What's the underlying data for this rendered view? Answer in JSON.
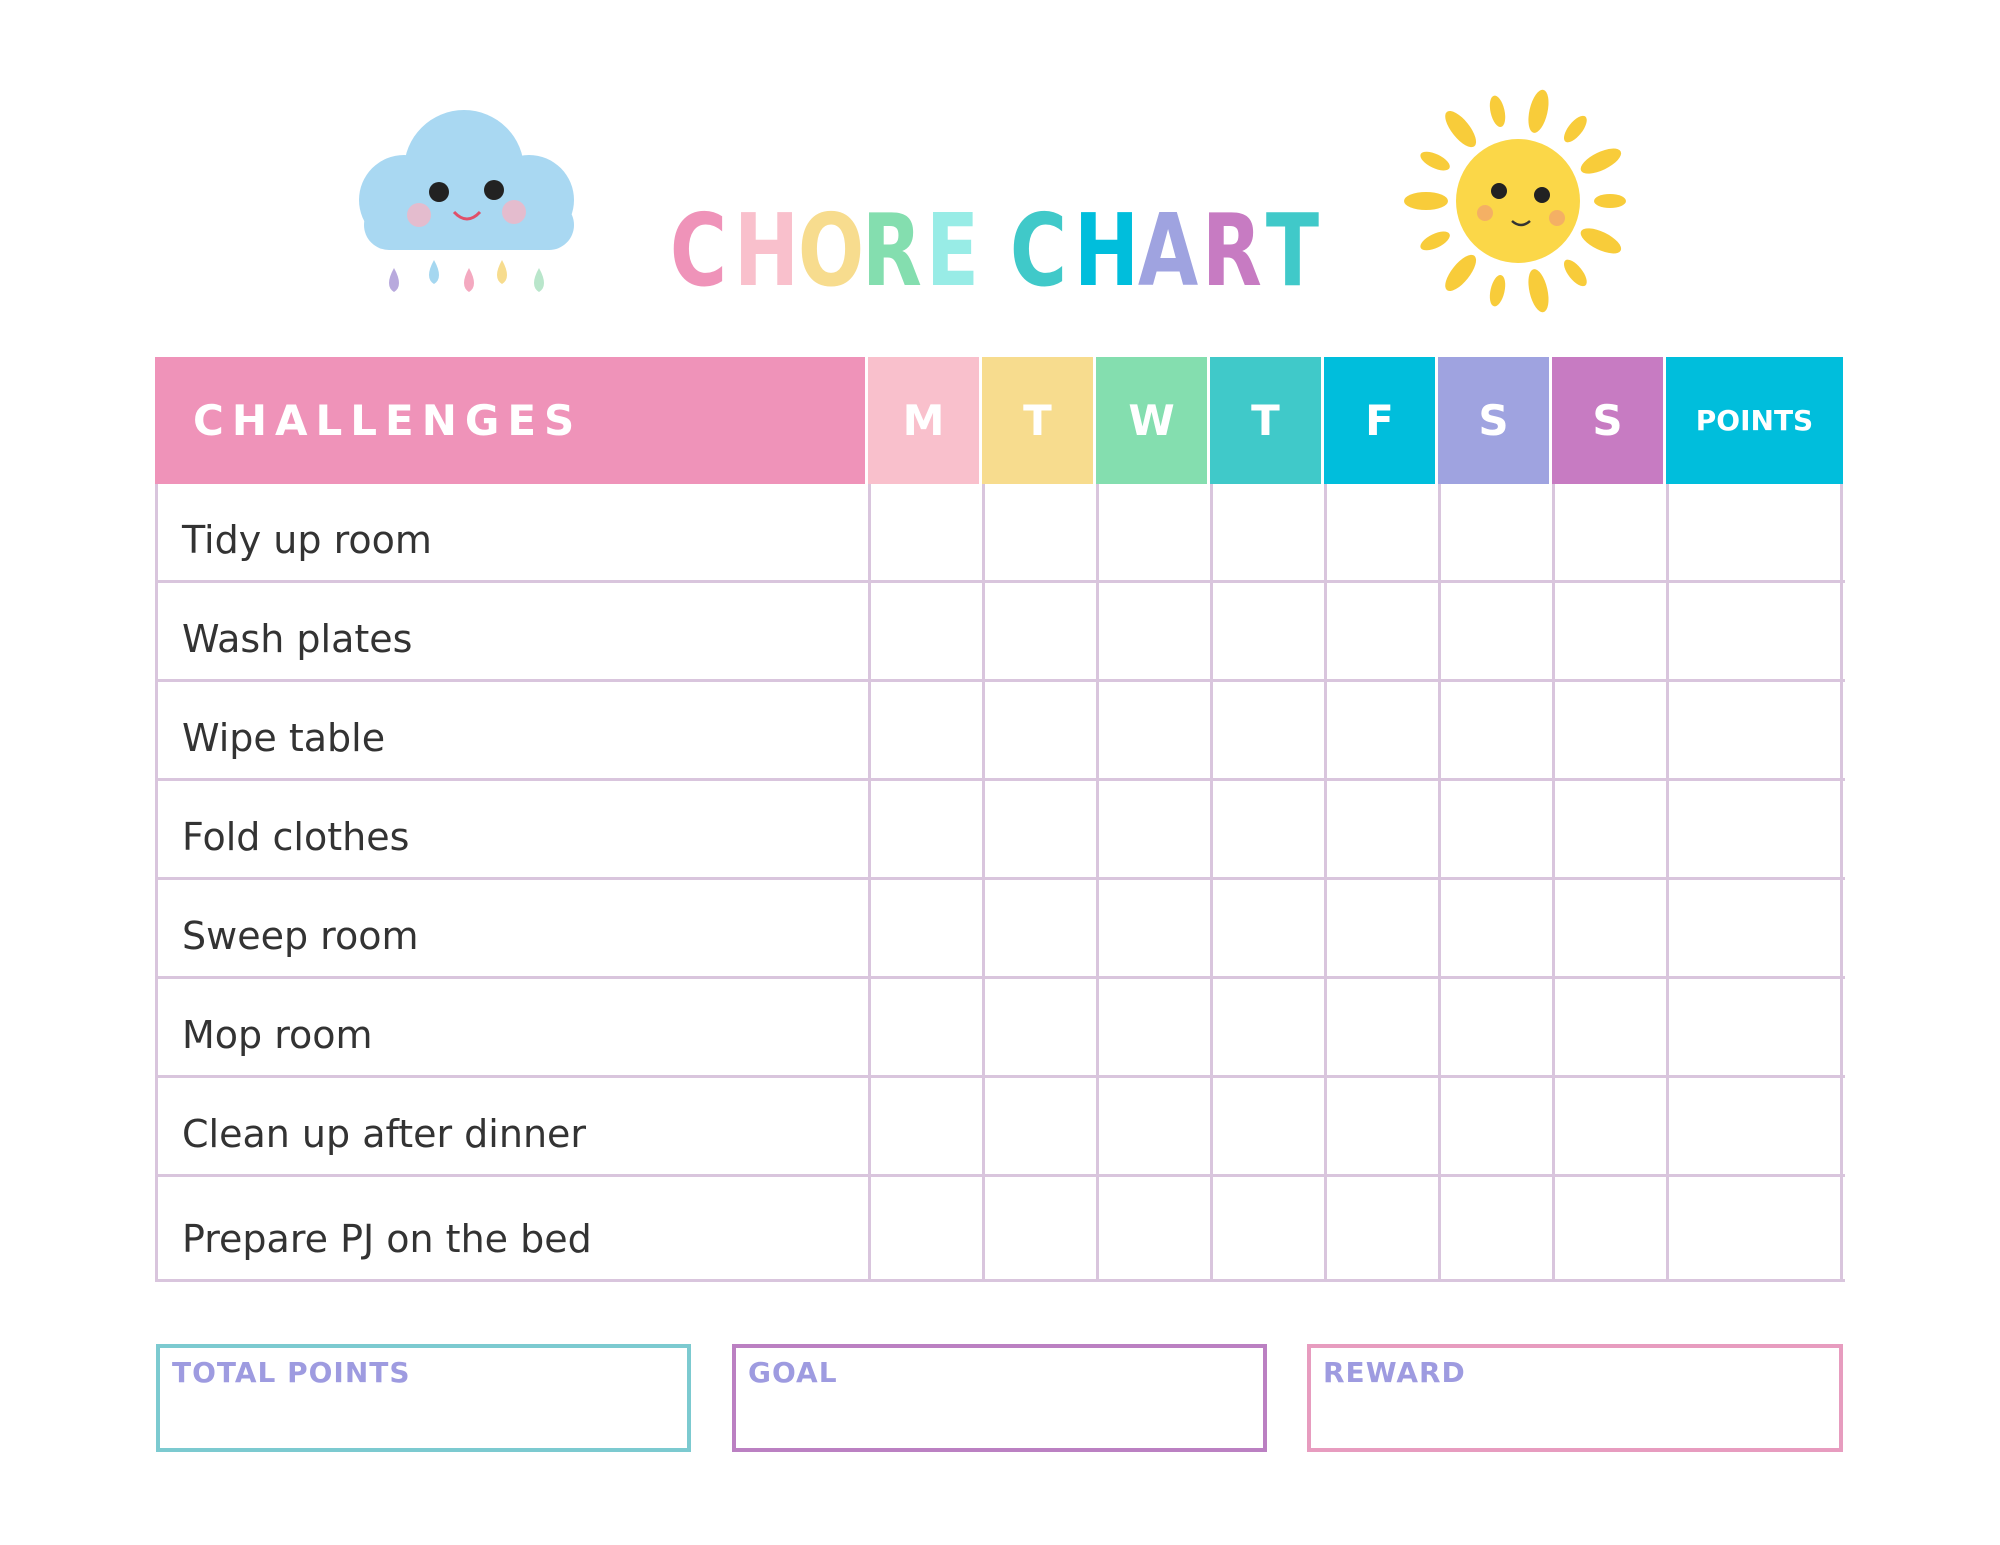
{
  "title": {
    "letters": [
      "C",
      "H",
      "O",
      "R",
      "E",
      "C",
      "H",
      "A",
      "R",
      "T"
    ],
    "colors": [
      "#ef93b9",
      "#f9c0cc",
      "#f7dc8e",
      "#84deaf",
      "#98ece6",
      "#40c9c9",
      "#00bedc",
      "#9fa3e0",
      "#c77bc2",
      "#40c9c9"
    ]
  },
  "header": {
    "challenges": "CHALLENGES",
    "days": [
      "M",
      "T",
      "W",
      "T",
      "F",
      "S",
      "S"
    ],
    "day_colors": [
      "#f9c0cc",
      "#f7dc8e",
      "#84deaf",
      "#40c9c9",
      "#00bedc",
      "#9fa3e0",
      "#c77bc2"
    ],
    "points": "POINTS",
    "challenges_color": "#ef93b9",
    "points_color": "#00bedc"
  },
  "chores": [
    "Tidy up room",
    "Wash plates",
    "Wipe table",
    "Fold clothes",
    "Sweep room",
    "Mop room",
    "Clean up after dinner",
    "Prepare PJ on the bed"
  ],
  "footer": {
    "total_points": "TOTAL POINTS",
    "goal": "GOAL",
    "reward": "REWARD"
  }
}
